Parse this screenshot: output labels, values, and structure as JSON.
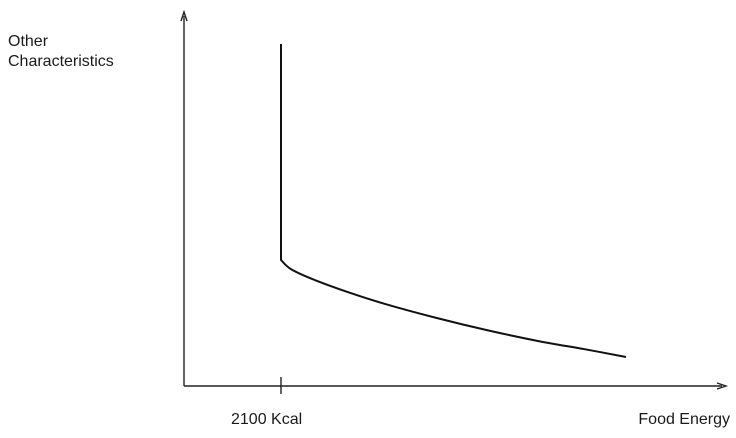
{
  "chart_data": {
    "type": "line",
    "title": "",
    "xlabel": "Food Energy",
    "ylabel_lines": [
      "Other",
      "Characteristics"
    ],
    "x_tick_labels": [
      "2100 Kcal"
    ],
    "axes": {
      "x_arrow": true,
      "y_arrow": true,
      "numeric_ticks": false
    },
    "series": [
      {
        "description": "vertical segment at the threshold, then a decreasing convex curve",
        "points": [
          {
            "x": 0.0,
            "y": 1.0
          },
          {
            "x": 0.0,
            "y": 0.31
          },
          {
            "x": 0.03,
            "y": 0.28
          },
          {
            "x": 0.1,
            "y": 0.245
          },
          {
            "x": 0.2,
            "y": 0.205
          },
          {
            "x": 0.3,
            "y": 0.17
          },
          {
            "x": 0.45,
            "y": 0.125
          },
          {
            "x": 0.6,
            "y": 0.085
          },
          {
            "x": 0.75,
            "y": 0.05
          },
          {
            "x": 0.88,
            "y": 0.025
          },
          {
            "x": 1.0,
            "y": 0.0
          }
        ]
      }
    ],
    "line_color": "#111111",
    "axis_color": "#222222"
  }
}
